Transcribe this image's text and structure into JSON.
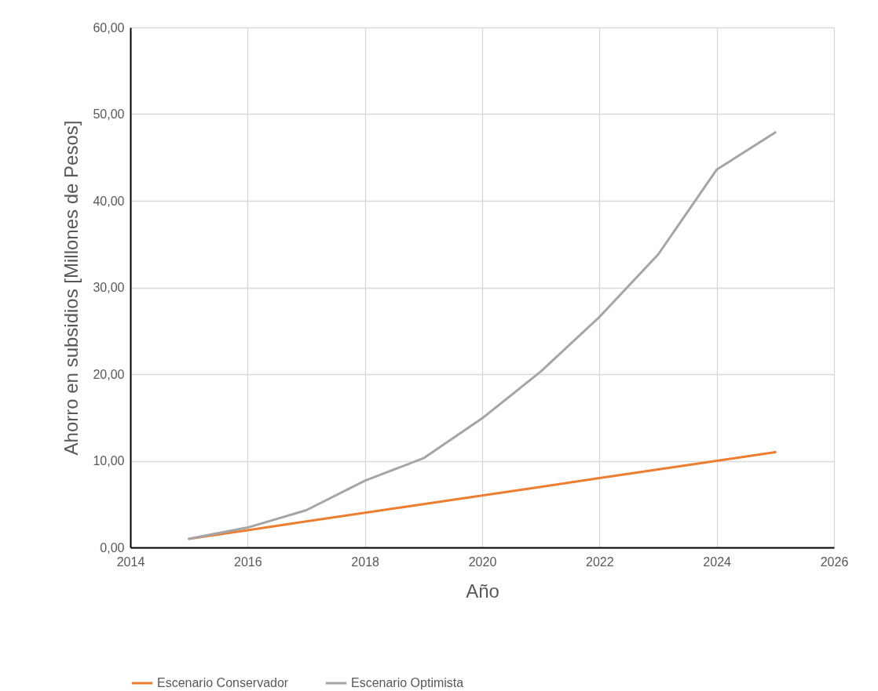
{
  "chart_data": {
    "type": "line",
    "xlabel": "Año",
    "ylabel": "Ahorro en subsidios [Millones de Pesos]",
    "x": [
      2015,
      2016,
      2017,
      2018,
      2019,
      2020,
      2021,
      2022,
      2023,
      2024,
      2025
    ],
    "series": [
      {
        "name": "Escenario Conservador",
        "color": "#ed7d31",
        "values": [
          1.0,
          2.0,
          3.0,
          4.0,
          5.0,
          6.0,
          7.0,
          8.0,
          9.0,
          10.0,
          11.0
        ]
      },
      {
        "name": "Escenario Optimista",
        "color": "#a5a5a5",
        "values": [
          1.0,
          2.3,
          4.3,
          7.7,
          10.3,
          14.9,
          20.3,
          26.6,
          33.8,
          43.6,
          47.9
        ]
      }
    ],
    "xlim": [
      2014,
      2026
    ],
    "xticks": [
      2014,
      2016,
      2018,
      2020,
      2022,
      2024,
      2026
    ],
    "ylim": [
      0,
      60
    ],
    "yticks": [
      {
        "value": 0,
        "label": "0,00"
      },
      {
        "value": 10,
        "label": "10,00"
      },
      {
        "value": 20,
        "label": "20,00"
      },
      {
        "value": 30,
        "label": "30,00"
      },
      {
        "value": 40,
        "label": "40,00"
      },
      {
        "value": 50,
        "label": "50,00"
      },
      {
        "value": 60,
        "label": "60,00"
      }
    ],
    "grid": true,
    "legend": "bottom",
    "marker": "none",
    "line_style": "solid"
  }
}
